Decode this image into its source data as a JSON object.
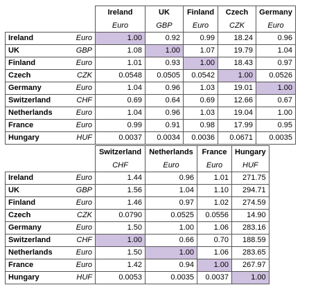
{
  "table1": {
    "columns": [
      {
        "name": "Ireland",
        "currency": "Euro"
      },
      {
        "name": "UK",
        "currency": "GBP"
      },
      {
        "name": "Finland",
        "currency": "Euro"
      },
      {
        "name": "Czech",
        "currency": "CZK"
      },
      {
        "name": "Germany",
        "currency": "Euro"
      }
    ],
    "rows": [
      {
        "name": "Ireland",
        "currency": "Euro",
        "values": [
          "1.00",
          "0.92",
          "0.99",
          "18.24",
          "0.96"
        ]
      },
      {
        "name": "UK",
        "currency": "GBP",
        "values": [
          "1.08",
          "1.00",
          "1.07",
          "19.79",
          "1.04"
        ]
      },
      {
        "name": "Finland",
        "currency": "Euro",
        "values": [
          "1.01",
          "0.93",
          "1.00",
          "18.43",
          "0.97"
        ]
      },
      {
        "name": "Czech",
        "currency": "CZK",
        "values": [
          "0.0548",
          "0.0505",
          "0.0542",
          "1.00",
          "0.0526"
        ]
      },
      {
        "name": "Germany",
        "currency": "Euro",
        "values": [
          "1.04",
          "0.96",
          "1.03",
          "19.01",
          "1.00"
        ]
      },
      {
        "name": "Switzerland",
        "currency": "CHF",
        "values": [
          "0.69",
          "0.64",
          "0.69",
          "12.66",
          "0.67"
        ]
      },
      {
        "name": "Netherlands",
        "currency": "Euro",
        "values": [
          "1.04",
          "0.96",
          "1.03",
          "19.04",
          "1.00"
        ]
      },
      {
        "name": "France",
        "currency": "Euro",
        "values": [
          "0.99",
          "0.91",
          "0.98",
          "17.99",
          "0.95"
        ]
      },
      {
        "name": "Hungary",
        "currency": "HUF",
        "values": [
          "0.0037",
          "0.0034",
          "0.0036",
          "0.0671",
          "0.0035"
        ]
      }
    ]
  },
  "table2": {
    "columns": [
      {
        "name": "Switzerland",
        "currency": "CHF"
      },
      {
        "name": "Netherlands",
        "currency": "Euro"
      },
      {
        "name": "France",
        "currency": "Euro"
      },
      {
        "name": "Hungary",
        "currency": "HUF"
      }
    ],
    "rows": [
      {
        "name": "Ireland",
        "currency": "Euro",
        "values": [
          "1.44",
          "0.96",
          "1.01",
          "271.75"
        ]
      },
      {
        "name": "UK",
        "currency": "GBP",
        "values": [
          "1.56",
          "1.04",
          "1.10",
          "294.71"
        ]
      },
      {
        "name": "Finland",
        "currency": "Euro",
        "values": [
          "1.46",
          "0.97",
          "1.02",
          "274.59"
        ]
      },
      {
        "name": "Czech",
        "currency": "CZK",
        "values": [
          "0.0790",
          "0.0525",
          "0.0556",
          "14.90"
        ]
      },
      {
        "name": "Germany",
        "currency": "Euro",
        "values": [
          "1.50",
          "1.00",
          "1.06",
          "283.16"
        ]
      },
      {
        "name": "Switzerland",
        "currency": "CHF",
        "values": [
          "1.00",
          "0.66",
          "0.70",
          "188.59"
        ]
      },
      {
        "name": "Netherlands",
        "currency": "Euro",
        "values": [
          "1.50",
          "1.00",
          "1.06",
          "283.65"
        ]
      },
      {
        "name": "France",
        "currency": "Euro",
        "values": [
          "1.42",
          "0.94",
          "1.00",
          "267.97"
        ]
      },
      {
        "name": "Hungary",
        "currency": "HUF",
        "values": [
          "0.0053",
          "0.0035",
          "0.0037",
          "1.00"
        ]
      }
    ]
  },
  "highlight_color": "#cfc1e0"
}
